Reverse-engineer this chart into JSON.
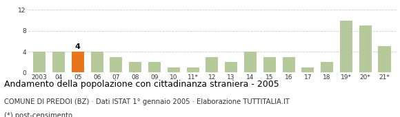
{
  "categories": [
    "2003",
    "04",
    "05",
    "06",
    "07",
    "08",
    "09",
    "10",
    "11*",
    "12",
    "13",
    "14",
    "15",
    "16",
    "17",
    "18",
    "19*",
    "20*",
    "21*"
  ],
  "values": [
    4,
    4,
    4,
    4,
    3,
    2,
    2,
    1,
    1,
    3,
    2,
    4,
    3,
    3,
    1,
    2,
    10,
    9,
    5
  ],
  "bar_color_default": "#b5c99a",
  "bar_color_highlight": "#e8751a",
  "highlight_index": 2,
  "highlight_label": "4",
  "ylim": [
    0,
    13
  ],
  "yticks": [
    0,
    4,
    8,
    12
  ],
  "grid_color": "#cccccc",
  "title": "Andamento della popolazione con cittadinanza straniera - 2005",
  "subtitle": "COMUNE DI PREDOI (BZ) · Dati ISTAT 1° gennaio 2005 · Elaborazione TUTTITALIA.IT",
  "footnote": "(*) post-censimento",
  "title_fontsize": 9.0,
  "subtitle_fontsize": 7.2,
  "footnote_fontsize": 7.2,
  "tick_fontsize": 6.5,
  "ytick_fontsize": 6.5,
  "background_color": "#ffffff"
}
